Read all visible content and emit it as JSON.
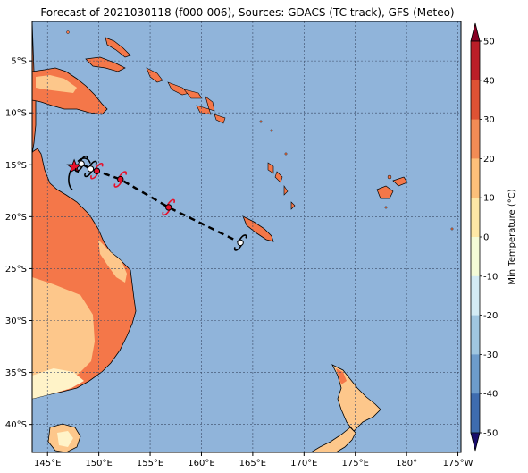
{
  "title": "Forecast of 2021030118 (f000-006), Sources: GDACS (TC track), GFS (Meteo)",
  "map": {
    "lon_range": [
      143.5,
      185.3
    ],
    "lat_range": [
      -42.7,
      -1.2
    ],
    "xticks": [
      {
        "lon": 145,
        "label": "145°E"
      },
      {
        "lon": 150,
        "label": "150°E"
      },
      {
        "lon": 155,
        "label": "155°E"
      },
      {
        "lon": 160,
        "label": "160°E"
      },
      {
        "lon": 165,
        "label": "165°E"
      },
      {
        "lon": 170,
        "label": "170°E"
      },
      {
        "lon": 175,
        "label": "175°E"
      },
      {
        "lon": 180,
        "label": "180°"
      },
      {
        "lon": 185,
        "label": "175°W"
      }
    ],
    "yticks": [
      {
        "lat": -5,
        "label": "5°S"
      },
      {
        "lat": -10,
        "label": "10°S"
      },
      {
        "lat": -15,
        "label": "15°S"
      },
      {
        "lat": -20,
        "label": "20°S"
      },
      {
        "lat": -25,
        "label": "25°S"
      },
      {
        "lat": -30,
        "label": "30°S"
      },
      {
        "lat": -35,
        "label": "35°S"
      },
      {
        "lat": -40,
        "label": "40°S"
      }
    ],
    "grid": true,
    "ocean_color": "#90b4da"
  },
  "track": [
    {
      "lon": 147.6,
      "lat": -15.2,
      "marker": "star"
    },
    {
      "lon": 148.3,
      "lat": -14.9,
      "marker": "storm-open"
    },
    {
      "lon": 149.2,
      "lat": -15.4,
      "marker": "storm-open"
    },
    {
      "lon": 149.8,
      "lat": -15.6,
      "marker": "storm-red"
    },
    {
      "lon": 152.1,
      "lat": -16.4,
      "marker": "storm-red"
    },
    {
      "lon": 156.8,
      "lat": -19.1,
      "marker": "storm-red"
    },
    {
      "lon": 163.8,
      "lat": -22.5,
      "marker": "storm-open"
    }
  ],
  "colorbar": {
    "label": "Min Temperature (°C)",
    "ticks": [
      50,
      40,
      30,
      20,
      10,
      0,
      -10,
      -20,
      -30,
      -40,
      -50
    ],
    "colors": [
      "#180c6c",
      "#2a3f99",
      "#3e6caf",
      "#6d9ccb",
      "#9fc6e0",
      "#d3ebf4",
      "#f4fbd7",
      "#fee8a6",
      "#fdc07a",
      "#f38c55",
      "#de5234",
      "#bb1e28",
      "#870024"
    ]
  }
}
